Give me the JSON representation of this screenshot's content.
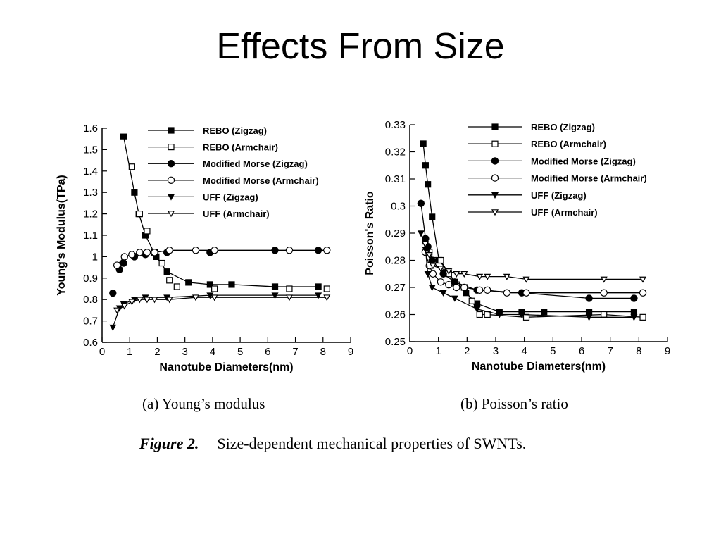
{
  "slide": {
    "title": "Effects From Size"
  },
  "captions": {
    "panel_a": "(a) Young’s modulus",
    "panel_b": "(b) Poisson’s ratio",
    "figure_label": "Figure 2.",
    "figure_text": "Size-dependent mechanical properties of SWNTs."
  },
  "chart_data": [
    {
      "type": "line",
      "xlabel": "Nanotube Diameters(nm)",
      "ylabel": "Young's Modulus(TPa)",
      "xlim": [
        0,
        9
      ],
      "ylim": [
        0.6,
        1.6
      ],
      "xticks": [
        0,
        1,
        2,
        3,
        4,
        5,
        6,
        7,
        8,
        9
      ],
      "yticks": [
        0.6,
        0.7,
        0.8,
        0.9,
        1,
        1.1,
        1.2,
        1.3,
        1.4,
        1.5,
        1.6
      ],
      "xtick_labels": [
        "0",
        "1",
        "2",
        "3",
        "4",
        "5",
        "6",
        "7",
        "8",
        "9"
      ],
      "ytick_labels": [
        "0.6",
        "0.7",
        "0.8",
        "0.9",
        "1",
        "1.1",
        "1.2",
        "1.3",
        "1.4",
        "1.5",
        "1.6"
      ],
      "legend_position": "top-right",
      "series": [
        {
          "name": "REBO (Zigzag)",
          "marker": "square-filled",
          "x": [
            0.78,
            1.17,
            1.33,
            1.57,
            1.96,
            2.35,
            3.13,
            3.91,
            4.69,
            6.26,
            7.83
          ],
          "y": [
            1.56,
            1.3,
            1.2,
            1.1,
            1.0,
            0.93,
            0.88,
            0.87,
            0.87,
            0.86,
            0.86
          ]
        },
        {
          "name": "REBO (Armchair)",
          "marker": "square-open",
          "x": [
            1.08,
            1.36,
            1.63,
            1.9,
            2.17,
            2.44,
            2.71,
            4.07,
            6.78,
            8.14
          ],
          "y": [
            1.42,
            1.2,
            1.12,
            1.02,
            0.97,
            0.89,
            0.86,
            0.85,
            0.85,
            0.85
          ],
          "line": false
        },
        {
          "name": "Modified Morse (Zigzag)",
          "marker": "circle-filled",
          "x": [
            0.39,
            0.63,
            0.78,
            1.17,
            1.57,
            2.35,
            3.91,
            6.26,
            7.83
          ],
          "y": [
            0.83,
            0.94,
            0.97,
            1.0,
            1.01,
            1.02,
            1.02,
            1.03,
            1.03
          ],
          "line": false
        },
        {
          "name": "Modified Morse (Armchair)",
          "marker": "circle-open",
          "x": [
            0.54,
            0.81,
            1.08,
            1.36,
            1.63,
            1.9,
            2.44,
            3.39,
            4.07,
            6.78,
            8.14
          ],
          "y": [
            0.96,
            1.0,
            1.01,
            1.02,
            1.02,
            1.02,
            1.03,
            1.03,
            1.03,
            1.03,
            1.03
          ]
        },
        {
          "name": "UFF (Zigzag)",
          "marker": "triangle-down-filled",
          "x": [
            0.39,
            0.63,
            0.78,
            1.17,
            1.57,
            2.35,
            3.91,
            6.26,
            7.83
          ],
          "y": [
            0.67,
            0.76,
            0.78,
            0.8,
            0.81,
            0.81,
            0.82,
            0.82,
            0.82
          ]
        },
        {
          "name": "UFF (Armchair)",
          "marker": "triangle-down-open",
          "x": [
            0.54,
            0.81,
            1.08,
            1.36,
            1.63,
            1.9,
            2.44,
            3.39,
            4.07,
            6.78,
            8.14
          ],
          "y": [
            0.75,
            0.77,
            0.79,
            0.8,
            0.8,
            0.8,
            0.8,
            0.81,
            0.81,
            0.81,
            0.81
          ]
        }
      ]
    },
    {
      "type": "line",
      "xlabel": "Nanotube Diameters(nm)",
      "ylabel": "Poisson's Ratio",
      "xlim": [
        0,
        9
      ],
      "ylim": [
        0.25,
        0.33
      ],
      "xticks": [
        0,
        1,
        2,
        3,
        4,
        5,
        6,
        7,
        8,
        9
      ],
      "yticks": [
        0.25,
        0.26,
        0.27,
        0.28,
        0.29,
        0.3,
        0.31,
        0.32,
        0.33
      ],
      "xtick_labels": [
        "0",
        "1",
        "2",
        "3",
        "4",
        "5",
        "6",
        "7",
        "8",
        "9"
      ],
      "ytick_labels": [
        "0.25",
        "0.26",
        "0.27",
        "0.28",
        "0.29",
        "0.3",
        "0.31",
        "0.32",
        "0.33"
      ],
      "legend_position": "top-right",
      "series": [
        {
          "name": "REBO (Zigzag)",
          "marker": "square-filled",
          "x": [
            0.47,
            0.55,
            0.63,
            0.78,
            1.02,
            1.33,
            1.57,
            1.96,
            2.35,
            3.13,
            3.91,
            4.69,
            6.26,
            7.83
          ],
          "y": [
            0.323,
            0.315,
            0.308,
            0.296,
            0.28,
            0.276,
            0.272,
            0.268,
            0.264,
            0.261,
            0.261,
            0.261,
            0.261,
            0.261
          ]
        },
        {
          "name": "REBO (Armchair)",
          "marker": "square-open",
          "x": [
            0.54,
            0.68,
            0.81,
            1.08,
            1.36,
            1.63,
            1.9,
            2.17,
            2.44,
            2.71,
            4.07,
            6.78,
            8.14
          ],
          "y": [
            0.287,
            0.283,
            0.28,
            0.28,
            0.275,
            0.271,
            0.27,
            0.265,
            0.26,
            0.26,
            0.259,
            0.26,
            0.259
          ]
        },
        {
          "name": "Modified Morse (Zigzag)",
          "marker": "circle-filled",
          "x": [
            0.39,
            0.55,
            0.63,
            0.78,
            1.17,
            1.57,
            2.35,
            3.91,
            6.26,
            7.83
          ],
          "y": [
            0.301,
            0.288,
            0.285,
            0.28,
            0.275,
            0.272,
            0.269,
            0.268,
            0.266,
            0.266
          ]
        },
        {
          "name": "Modified Morse (Armchair)",
          "marker": "circle-open",
          "x": [
            0.54,
            0.68,
            0.81,
            1.08,
            1.36,
            1.63,
            1.9,
            2.44,
            2.71,
            3.39,
            4.07,
            6.78,
            8.14
          ],
          "y": [
            0.283,
            0.278,
            0.275,
            0.272,
            0.271,
            0.27,
            0.27,
            0.269,
            0.269,
            0.268,
            0.268,
            0.268,
            0.268
          ]
        },
        {
          "name": "UFF (Zigzag)",
          "marker": "triangle-down-filled",
          "x": [
            0.39,
            0.55,
            0.63,
            0.78,
            1.17,
            1.57,
            2.35,
            3.13,
            3.91,
            6.26,
            7.83
          ],
          "y": [
            0.29,
            0.284,
            0.275,
            0.27,
            0.268,
            0.266,
            0.262,
            0.26,
            0.26,
            0.259,
            0.259
          ]
        },
        {
          "name": "UFF (Armchair)",
          "marker": "triangle-down-open",
          "x": [
            0.54,
            0.68,
            0.81,
            1.08,
            1.36,
            1.63,
            1.9,
            2.44,
            2.71,
            3.39,
            4.07,
            6.78,
            8.14
          ],
          "y": [
            0.286,
            0.282,
            0.278,
            0.277,
            0.276,
            0.275,
            0.275,
            0.274,
            0.274,
            0.274,
            0.273,
            0.273,
            0.273
          ]
        }
      ]
    }
  ]
}
